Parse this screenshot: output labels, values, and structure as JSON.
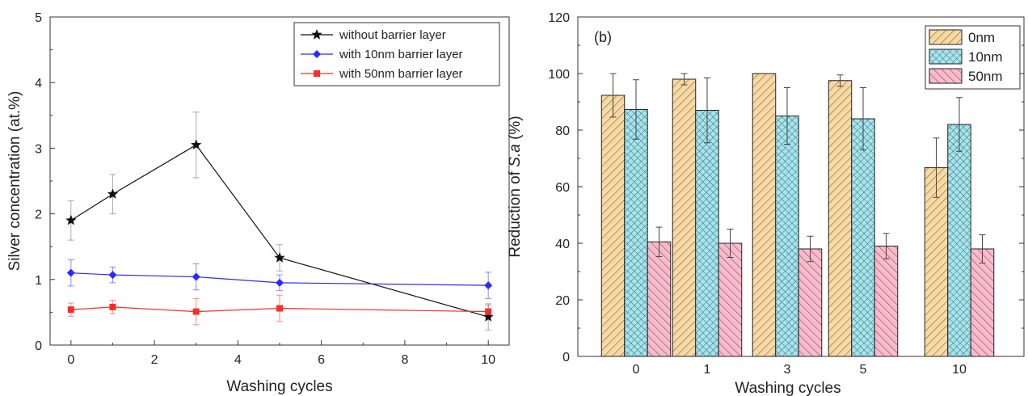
{
  "chart_data": [
    {
      "type": "line",
      "xlabel": "Washing cycles",
      "ylabel": "Silver concentration (at.%)",
      "xlim": [
        -0.5,
        10.5
      ],
      "ylim": [
        0,
        5
      ],
      "xticks": [
        "0",
        "2",
        "4",
        "6",
        "8",
        "10"
      ],
      "yticks": [
        "0",
        "1",
        "2",
        "3",
        "4",
        "5"
      ],
      "x": [
        0,
        1,
        3,
        5,
        10
      ],
      "legend_position": "top-right",
      "series": [
        {
          "name": "without barrier layer",
          "color": "#111111",
          "marker": "star",
          "values": [
            1.9,
            2.3,
            3.05,
            1.33,
            0.43
          ],
          "errors": [
            0.3,
            0.3,
            0.5,
            0.2,
            0.2
          ]
        },
        {
          "name": "with 10nm barrier layer",
          "color": "#2a2aff",
          "marker": "diamond",
          "values": [
            1.1,
            1.07,
            1.04,
            0.95,
            0.91
          ],
          "errors": [
            0.2,
            0.12,
            0.2,
            0.12,
            0.2
          ]
        },
        {
          "name": "with 50nm barrier layer",
          "color": "#ff2a2a",
          "marker": "square",
          "values": [
            0.54,
            0.58,
            0.51,
            0.56,
            0.51
          ],
          "errors": [
            0.1,
            0.1,
            0.2,
            0.2,
            0.1
          ]
        }
      ]
    },
    {
      "type": "bar",
      "label": "(b)",
      "xlabel": "Washing cycles",
      "ylabel_prefix": "Reduction of ",
      "ylabel_italic": "S.a",
      "ylabel_suffix": " (%)",
      "ylim": [
        0,
        120
      ],
      "yticks": [
        "0",
        "20",
        "40",
        "60",
        "80",
        "100",
        "120"
      ],
      "categories": [
        "0",
        "1",
        "3",
        "5",
        "10"
      ],
      "legend_position": "top-right",
      "series": [
        {
          "name": "0nm",
          "color": "#f7d9a6",
          "pattern": "diagonal",
          "values": [
            92.3,
            98,
            100,
            97.5,
            66.7
          ],
          "errors": [
            7.7,
            2,
            0,
            2,
            10.5
          ]
        },
        {
          "name": "10nm",
          "color": "#a6e4ec",
          "pattern": "crosshatch",
          "values": [
            87.3,
            87,
            85,
            84,
            82
          ],
          "errors": [
            10.5,
            11.5,
            10,
            11,
            9.5
          ]
        },
        {
          "name": "50nm",
          "color": "#f7bccb",
          "pattern": "diagonal",
          "values": [
            40.5,
            40,
            38,
            39,
            38
          ],
          "errors": [
            5.2,
            5,
            4.5,
            4.5,
            5
          ]
        }
      ]
    }
  ]
}
